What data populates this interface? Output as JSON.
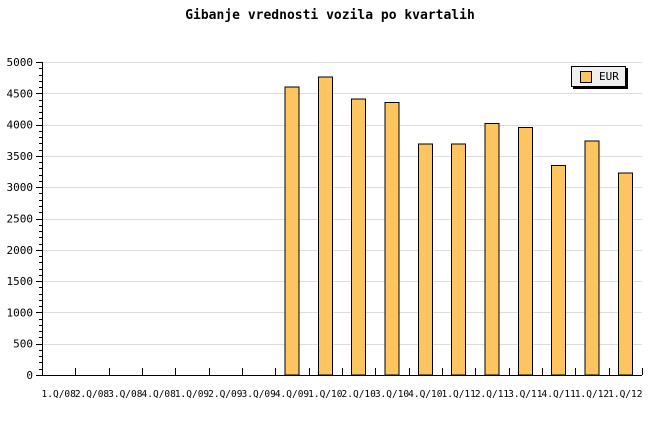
{
  "title": "Gibanje vrednosti vozila po kvartalih",
  "legend": {
    "label": "EUR",
    "swatch_color": "#FDC55F"
  },
  "chart_data": {
    "type": "bar",
    "title": "Gibanje vrednosti vozila po kvartalih",
    "categories": [
      "1.Q/08",
      "2.Q/08",
      "3.Q/08",
      "4.Q/08",
      "1.Q/09",
      "2.Q/09",
      "3.Q/09",
      "4.Q/09",
      "1.Q/10",
      "2.Q/10",
      "3.Q/10",
      "4.Q/10",
      "1.Q/11",
      "2.Q/11",
      "3.Q/11",
      "4.Q/11",
      "1.Q/12",
      "1.Q/12"
    ],
    "series": [
      {
        "name": "EUR",
        "values": [
          null,
          null,
          null,
          null,
          null,
          null,
          null,
          4600,
          4760,
          4410,
          4350,
          3690,
          3690,
          4020,
          3950,
          3350,
          3740,
          3230
        ]
      }
    ],
    "xlabel": "",
    "ylabel": "",
    "ylim": [
      0,
      5000
    ],
    "ytick_major": 500,
    "ytick_minor": 100,
    "grid": "horizontal-major",
    "legend_position": "top-right",
    "colors": {
      "bar_fill": "#FDC55F",
      "bar_border": "#000000",
      "grid": "#DCDCDC",
      "axis": "#000000",
      "text": "#000000",
      "background": "#FFFFFF",
      "legend_bg": "#F0F0F0"
    }
  }
}
